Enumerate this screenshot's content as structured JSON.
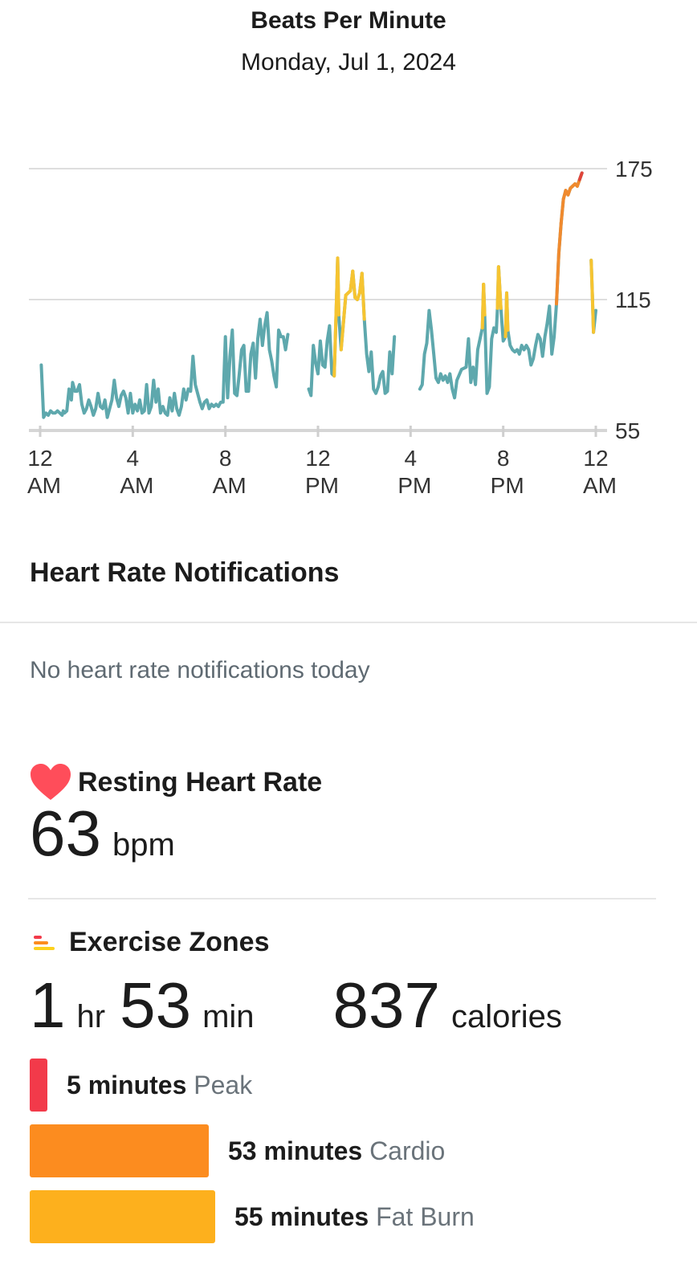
{
  "header": {
    "title": "Beats Per Minute",
    "date": "Monday, Jul 1, 2024"
  },
  "chart_data": {
    "type": "line",
    "title": "Beats Per Minute",
    "xlabel": "",
    "ylabel": "",
    "x_unit": "hour of day",
    "xlim": [
      0,
      24
    ],
    "ylim": [
      55,
      175
    ],
    "y_ticks": [
      55,
      115,
      175
    ],
    "x_tick_labels": [
      {
        "line1": "12",
        "line2": "AM"
      },
      {
        "line1": "4",
        "line2": "AM"
      },
      {
        "line1": "8",
        "line2": "AM"
      },
      {
        "line1": "12",
        "line2": "PM"
      },
      {
        "line1": "4",
        "line2": "PM"
      },
      {
        "line1": "8",
        "line2": "PM"
      },
      {
        "line1": "12",
        "line2": "AM"
      }
    ],
    "x_tick_values": [
      0,
      4,
      8,
      12,
      16,
      20,
      24
    ],
    "grid": true,
    "zone_colors": {
      "normal": "#5ea8ad",
      "fat_burn": "#f6c431",
      "cardio": "#f08a2e",
      "peak": "#e0453a"
    },
    "zone_thresholds": {
      "fat_burn": 115,
      "cardio": 136,
      "peak": 172
    },
    "segments": [
      [
        [
          0.05,
          85
        ],
        [
          0.15,
          61
        ],
        [
          0.25,
          63
        ],
        [
          0.35,
          62
        ],
        [
          0.45,
          64
        ],
        [
          0.55,
          63
        ],
        [
          0.65,
          63
        ],
        [
          0.75,
          64
        ],
        [
          0.85,
          63
        ],
        [
          0.95,
          62
        ],
        [
          1.0,
          64
        ],
        [
          1.05,
          63
        ],
        [
          1.15,
          64
        ],
        [
          1.25,
          74
        ],
        [
          1.35,
          69
        ],
        [
          1.4,
          77
        ],
        [
          1.5,
          73
        ],
        [
          1.6,
          73
        ],
        [
          1.7,
          76
        ],
        [
          1.8,
          67
        ],
        [
          1.9,
          63
        ],
        [
          2.0,
          65
        ],
        [
          2.1,
          69
        ],
        [
          2.2,
          66
        ],
        [
          2.3,
          62
        ],
        [
          2.4,
          65
        ],
        [
          2.5,
          72
        ],
        [
          2.6,
          66
        ],
        [
          2.7,
          65
        ],
        [
          2.8,
          69
        ],
        [
          2.9,
          61
        ],
        [
          3.0,
          65
        ],
        [
          3.1,
          69
        ],
        [
          3.2,
          78
        ],
        [
          3.3,
          70
        ],
        [
          3.4,
          66
        ],
        [
          3.5,
          71
        ],
        [
          3.6,
          73
        ],
        [
          3.7,
          70
        ],
        [
          3.8,
          63
        ],
        [
          3.9,
          72
        ],
        [
          4.0,
          63
        ],
        [
          4.1,
          67
        ],
        [
          4.2,
          64
        ],
        [
          4.3,
          69
        ],
        [
          4.4,
          63
        ],
        [
          4.5,
          64
        ],
        [
          4.6,
          76
        ],
        [
          4.7,
          63
        ],
        [
          4.8,
          66
        ],
        [
          4.9,
          78
        ],
        [
          5.0,
          68
        ],
        [
          5.1,
          74
        ],
        [
          5.2,
          63
        ],
        [
          5.3,
          66
        ],
        [
          5.4,
          63
        ],
        [
          5.5,
          62
        ],
        [
          5.6,
          70
        ],
        [
          5.7,
          64
        ],
        [
          5.8,
          72
        ],
        [
          5.9,
          65
        ],
        [
          6.0,
          62
        ],
        [
          6.1,
          66
        ],
        [
          6.2,
          74
        ],
        [
          6.3,
          69
        ],
        [
          6.4,
          74
        ],
        [
          6.5,
          73
        ],
        [
          6.6,
          89
        ],
        [
          6.7,
          76
        ],
        [
          6.8,
          72
        ],
        [
          6.9,
          68
        ],
        [
          7.0,
          65
        ],
        [
          7.1,
          68
        ],
        [
          7.2,
          69
        ],
        [
          7.3,
          65
        ],
        [
          7.4,
          67
        ],
        [
          7.5,
          66
        ],
        [
          7.6,
          67
        ],
        [
          7.7,
          66
        ],
        [
          7.8,
          68
        ],
        [
          7.9,
          68
        ],
        [
          8.0,
          98
        ],
        [
          8.1,
          70
        ],
        [
          8.2,
          89
        ],
        [
          8.3,
          101
        ],
        [
          8.4,
          72
        ],
        [
          8.5,
          71
        ],
        [
          8.6,
          81
        ],
        [
          8.7,
          92
        ],
        [
          8.8,
          94
        ],
        [
          8.9,
          73
        ],
        [
          9.0,
          73
        ],
        [
          9.1,
          90
        ],
        [
          9.2,
          95
        ],
        [
          9.3,
          79
        ],
        [
          9.4,
          97
        ],
        [
          9.5,
          106
        ],
        [
          9.6,
          94
        ],
        [
          9.7,
          103
        ],
        [
          9.8,
          109
        ],
        [
          9.9,
          92
        ],
        [
          10.0,
          87
        ],
        [
          10.1,
          80
        ],
        [
          10.2,
          75
        ],
        [
          10.3,
          101
        ],
        [
          10.4,
          98
        ],
        [
          10.5,
          98
        ],
        [
          10.6,
          92
        ],
        [
          10.7,
          99
        ]
      ],
      [
        [
          11.6,
          74
        ],
        [
          11.7,
          71
        ],
        [
          11.8,
          94
        ],
        [
          11.9,
          86
        ],
        [
          12.0,
          81
        ],
        [
          12.1,
          96
        ],
        [
          12.2,
          85
        ],
        [
          12.3,
          84
        ],
        [
          12.4,
          96
        ],
        [
          12.5,
          103
        ],
        [
          12.6,
          81
        ],
        [
          12.7,
          80
        ],
        [
          12.8,
          115
        ],
        [
          12.85,
          134
        ],
        [
          12.9,
          108
        ],
        [
          13.0,
          92
        ],
        [
          13.2,
          117
        ],
        [
          13.4,
          119
        ],
        [
          13.5,
          128
        ],
        [
          13.6,
          116
        ],
        [
          13.7,
          115
        ],
        [
          13.8,
          118
        ],
        [
          13.9,
          127
        ],
        [
          14.0,
          106
        ],
        [
          14.1,
          90
        ],
        [
          14.2,
          82
        ],
        [
          14.3,
          91
        ],
        [
          14.4,
          74
        ],
        [
          14.5,
          72
        ],
        [
          14.6,
          75
        ],
        [
          14.7,
          80
        ],
        [
          14.8,
          82
        ],
        [
          14.9,
          72
        ],
        [
          15.0,
          73
        ],
        [
          15.1,
          91
        ],
        [
          15.2,
          81
        ],
        [
          15.3,
          98
        ]
      ],
      [
        [
          16.4,
          74
        ],
        [
          16.5,
          76
        ],
        [
          16.6,
          90
        ],
        [
          16.7,
          95
        ],
        [
          16.8,
          110
        ],
        [
          16.9,
          101
        ],
        [
          17.0,
          90
        ],
        [
          17.1,
          79
        ],
        [
          17.2,
          77
        ],
        [
          17.3,
          81
        ],
        [
          17.4,
          78
        ],
        [
          17.5,
          80
        ],
        [
          17.6,
          77
        ],
        [
          17.7,
          81
        ],
        [
          17.8,
          74
        ],
        [
          17.9,
          70
        ],
        [
          18.0,
          78
        ],
        [
          18.2,
          83
        ],
        [
          18.4,
          84
        ],
        [
          18.5,
          97
        ],
        [
          18.6,
          77
        ],
        [
          18.7,
          84
        ],
        [
          18.8,
          76
        ],
        [
          18.9,
          92
        ],
        [
          19.0,
          97
        ],
        [
          19.1,
          102
        ],
        [
          19.15,
          122
        ],
        [
          19.2,
          108
        ],
        [
          19.3,
          72
        ],
        [
          19.4,
          75
        ],
        [
          19.5,
          97
        ],
        [
          19.6,
          102
        ],
        [
          19.7,
          100
        ],
        [
          19.75,
          111
        ],
        [
          19.8,
          130
        ],
        [
          19.9,
          111
        ],
        [
          20.0,
          96
        ],
        [
          20.1,
          98
        ],
        [
          20.15,
          118
        ],
        [
          20.2,
          101
        ],
        [
          20.3,
          94
        ],
        [
          20.4,
          92
        ],
        [
          20.5,
          91
        ],
        [
          20.6,
          92
        ],
        [
          20.7,
          90
        ],
        [
          20.8,
          94
        ],
        [
          20.9,
          92
        ],
        [
          21.0,
          94
        ],
        [
          21.1,
          92
        ],
        [
          21.2,
          85
        ],
        [
          21.3,
          88
        ],
        [
          21.4,
          94
        ],
        [
          21.5,
          99
        ],
        [
          21.6,
          97
        ],
        [
          21.7,
          89
        ],
        [
          21.8,
          98
        ],
        [
          21.9,
          104
        ],
        [
          22.0,
          112
        ],
        [
          22.1,
          90
        ],
        [
          22.2,
          98
        ],
        [
          22.3,
          113
        ],
        [
          22.4,
          136
        ],
        [
          22.5,
          150
        ],
        [
          22.6,
          161
        ],
        [
          22.7,
          165
        ],
        [
          22.8,
          163
        ],
        [
          22.9,
          166
        ],
        [
          23.0,
          167
        ],
        [
          23.1,
          168
        ],
        [
          23.2,
          167
        ],
        [
          23.3,
          170
        ],
        [
          23.4,
          173
        ]
      ],
      [
        [
          23.8,
          133
        ],
        [
          23.85,
          117
        ],
        [
          23.9,
          100
        ],
        [
          24.0,
          110
        ]
      ]
    ]
  },
  "notifications": {
    "title": "Heart Rate Notifications",
    "empty_text": "No heart rate notifications today"
  },
  "resting": {
    "title": "Resting Heart Rate",
    "value": "63",
    "unit": "bpm",
    "icon": "heart-icon",
    "color": "#ff4d5a"
  },
  "exercise": {
    "title": "Exercise Zones",
    "icon": "zones-icon",
    "hours": "1",
    "hours_unit": "hr",
    "minutes": "53",
    "minutes_unit": "min",
    "calories": "837",
    "calories_unit": "calories",
    "zones": [
      {
        "minutes": 5,
        "minutes_label": "5 minutes",
        "name": "Peak",
        "color": "#f23a4a"
      },
      {
        "minutes": 53,
        "minutes_label": "53 minutes",
        "name": "Cardio",
        "color": "#fc8c1f"
      },
      {
        "minutes": 55,
        "minutes_label": "55 minutes",
        "name": "Fat Burn",
        "color": "#fdb01d"
      }
    ]
  }
}
